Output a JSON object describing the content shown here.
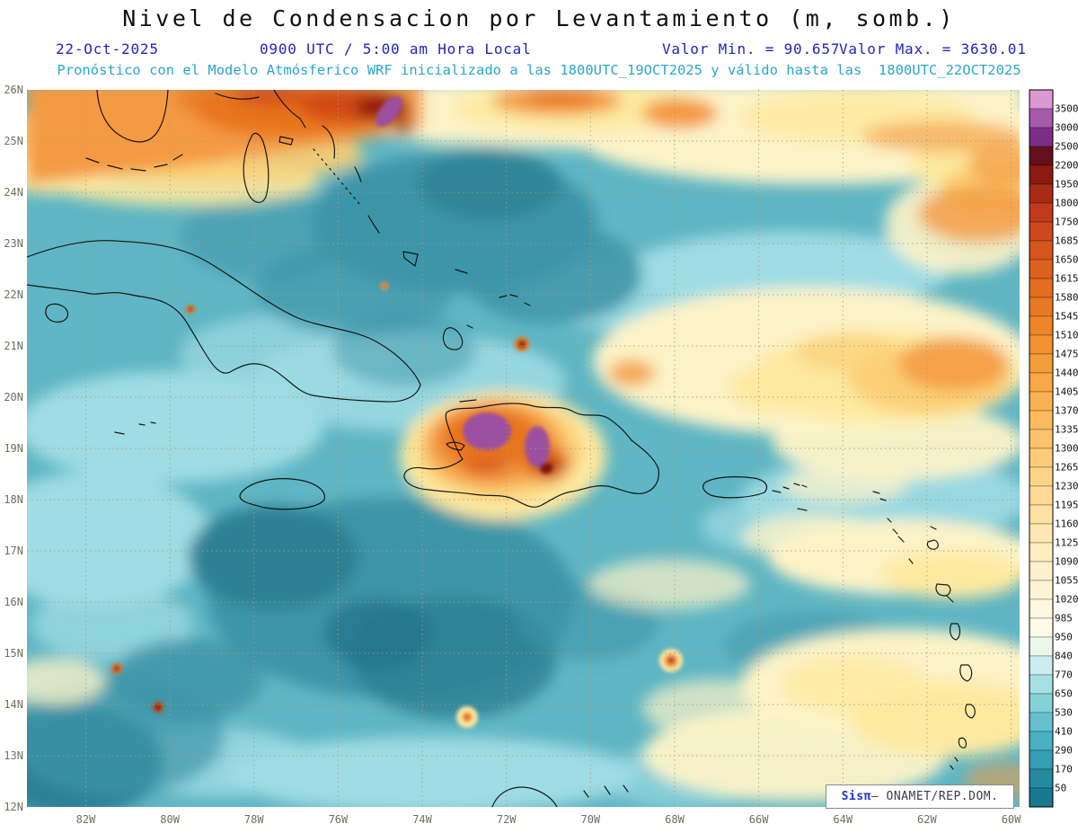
{
  "title": "Nivel de Condensacion por Levantamiento (m, somb.)",
  "header": {
    "date": "22-Oct-2025",
    "time_label": "0900 UTC / 5:00 am Hora Local",
    "value_min_label": "Valor Min. = 90.657",
    "value_max_label": "Valor Max. = 3630.01",
    "forecast_line": "Pronóstico con el Modelo Atmósferico WRF inicializado a las 1800UTC_19OCT2025 y válido hasta las  1800UTC_22OCT2025"
  },
  "credit": {
    "sis": "Sis",
    "pi": "π",
    "org": "– ONAMET/REP.DOM."
  },
  "chart_data": {
    "type": "heatmap",
    "title": "Nivel de Condensacion por Levantamiento (m, somb.)",
    "variable": "Lifting Condensation Level",
    "units": "m",
    "value_min": 90.657,
    "value_max": 3630.01,
    "run_date": "22-Oct-2025",
    "valid_time_local": "0900 UTC / 5:00 am Hora Local",
    "model": "WRF",
    "model_init": "1800UTC_19OCT2025",
    "model_valid": "1800UTC_22OCT2025",
    "lat_ticks": [
      "26N",
      "25N",
      "24N",
      "23N",
      "22N",
      "21N",
      "20N",
      "19N",
      "18N",
      "17N",
      "16N",
      "15N",
      "14N",
      "13N",
      "12N"
    ],
    "lon_ticks": [
      "82W",
      "80W",
      "78W",
      "76W",
      "74W",
      "72W",
      "70W",
      "68W",
      "66W",
      "64W",
      "62W",
      "60W"
    ],
    "lat_range_deg": [
      12,
      26
    ],
    "lon_range_deg_west": [
      83.4,
      59.8
    ],
    "grid_dotted": true,
    "map_background_color": "#60b6c4",
    "colorbar": {
      "levels_top_to_bottom": [
        3500,
        3000,
        2500,
        2200,
        1950,
        1800,
        1750,
        1685,
        1650,
        1615,
        1580,
        1545,
        1510,
        1475,
        1440,
        1405,
        1370,
        1335,
        1300,
        1265,
        1230,
        1195,
        1160,
        1125,
        1090,
        1055,
        1020,
        985,
        950,
        840,
        770,
        650,
        530,
        410,
        290,
        170,
        50
      ],
      "colors_top_to_bottom": [
        "#dc98d2",
        "#a75aab",
        "#7c2e87",
        "#62101a",
        "#8c1a10",
        "#a72a15",
        "#c13a1d",
        "#cc481d",
        "#d5551d",
        "#dc611e",
        "#e36d20",
        "#e97924",
        "#ee8529",
        "#f29130",
        "#f59c3a",
        "#f8a745",
        "#fab151",
        "#fbba5e",
        "#fcc36c",
        "#fdcb7a",
        "#fdd388",
        "#feda96",
        "#fee1a4",
        "#fee7b2",
        "#ffecbf",
        "#fff1cb",
        "#fff5d6",
        "#fff8e0",
        "#fffbe9",
        "#ecf8ec",
        "#cbedef",
        "#a8dfe5",
        "#85d1da",
        "#65c1cf",
        "#4bb0c1",
        "#369eb2",
        "#25899f",
        "#177890"
      ]
    },
    "notable_features": [
      "LCL maxima above 3000 m (purple) over southwest Haiti and the central mountains of Hispaniola",
      "Secondary purple/dark-red maximum near 25.5N 74.9W north of the Bahamas",
      "High-LCL yellow-orange band (950-2200 m) along the northern boundary and over the Atlantic east of 68W",
      "Low LCL (50-840 m, teal shades) over most Caribbean and tropical Atlantic waters with scattered local red maxima"
    ],
    "accent_colors": {
      "header_blue": "#2424c2",
      "header_cyan": "#2aa7cb"
    }
  }
}
